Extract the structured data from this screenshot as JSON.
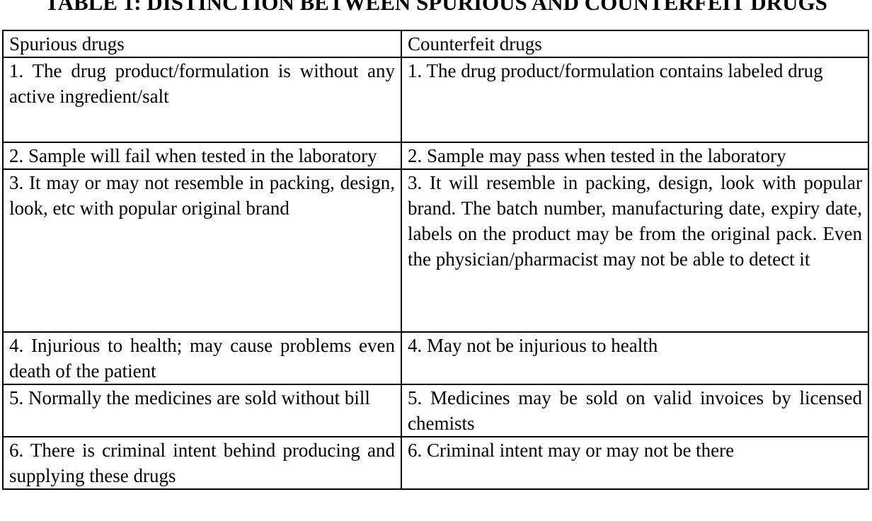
{
  "title": "TABLE 1: DISTINCTION BETWEEN SPURIOUS AND COUNTERFEIT DRUGS",
  "headers": [
    "Spurious drugs",
    "Counterfeit drugs"
  ],
  "rows": [
    [
      "1. The drug product/formulation is without any active ingredient/salt",
      "1. The drug product/formulation contains labeled drug"
    ],
    [
      "2. Sample will fail when tested in the laboratory",
      "2. Sample may pass when tested in the laboratory"
    ],
    [
      "3. It may or may not resemble in packing, design, look, etc with popular original brand",
      "3. It will resemble in packing, design, look with popular brand. The batch number, manufacturing date, expiry date, labels on the product may be from the original pack. Even the physician/pharmacist may not be able to detect it"
    ],
    [
      "4. Injurious to health; may cause problems even death of the patient",
      "4. May not be injurious to health"
    ],
    [
      "5. Normally the medicines are sold without bill",
      "5. Medicines may be sold on valid invoices by licensed chemists"
    ],
    [
      "6. There is criminal intent behind producing and supplying these drugs",
      "6. Criminal intent may or may not be there"
    ]
  ]
}
